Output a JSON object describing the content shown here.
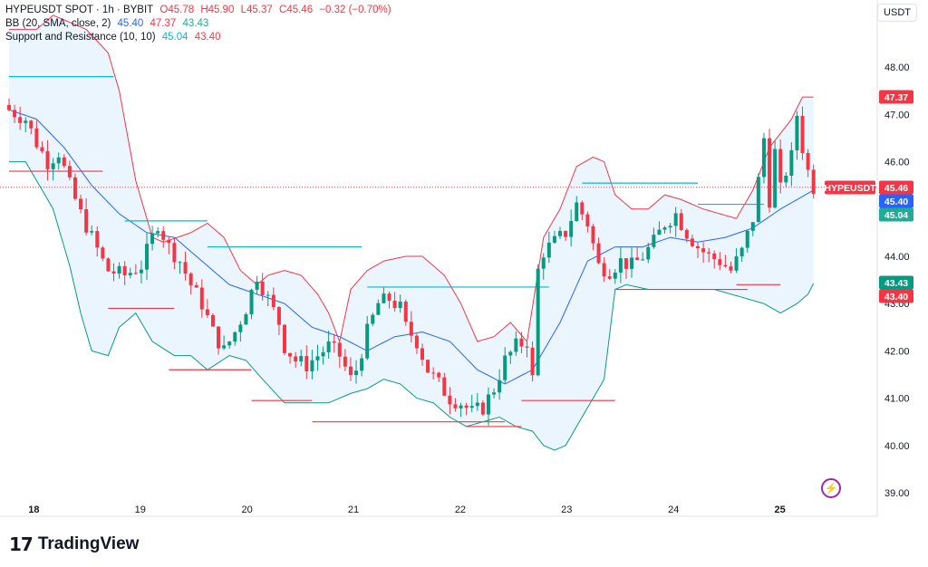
{
  "legend": {
    "symbol": "HYPEUSDT SPOT · 1h · BYBIT",
    "open": "O45.78",
    "high": "H45.90",
    "low": "L45.37",
    "close": "C45.46",
    "change": "−0.32 (−0.70%)",
    "bb_title": "BB (20, SMA, close, 2)",
    "bb_basis": "45.40",
    "bb_upper": "47.37",
    "bb_lower": "43.43",
    "sr_title": "Support and Resistance (10, 10)",
    "sr_resistance": "45.04",
    "sr_support": "43.40"
  },
  "currency": "USDT",
  "logo": {
    "mark": "17",
    "text": "TradingView"
  },
  "colors": {
    "up": "#089981",
    "down": "#f23645",
    "basis": "#2962ff",
    "upper": "#f23645",
    "lower": "#089981",
    "band_fill": "#e3f2fd",
    "resistance": "#00bcd4",
    "support": "#f23645"
  },
  "chart_data": {
    "type": "candlestick",
    "title": "HYPEUSDT SPOT · 1h · BYBIT",
    "x_labels": [
      "18",
      "19",
      "20",
      "21",
      "22",
      "23",
      "24",
      "25"
    ],
    "y_ticks": [
      39.0,
      40.0,
      41.0,
      42.0,
      43.0,
      44.0,
      45.0,
      46.0,
      47.0,
      48.0
    ],
    "ylim": [
      38.8,
      48.6
    ],
    "price_labels": [
      {
        "text": "47.37",
        "color": "#f23645"
      },
      {
        "text": "HYPEUSDT",
        "color": "#f23645"
      },
      {
        "text": "45.46",
        "color": "#f23645"
      },
      {
        "text": "45.40",
        "color": "#2962ff"
      },
      {
        "text": "45.04",
        "color": "#22ab94"
      },
      {
        "text": "43.43",
        "color": "#089981"
      },
      {
        "text": "43.40",
        "color": "#f23645"
      }
    ],
    "last_price": 45.46,
    "close_path": [
      [
        0,
        47.1
      ],
      [
        3,
        46.9
      ],
      [
        5,
        46.4
      ],
      [
        7,
        46.0
      ],
      [
        9,
        46.2
      ],
      [
        11,
        45.5
      ],
      [
        13,
        44.9
      ],
      [
        15,
        44.4
      ],
      [
        17,
        43.9
      ],
      [
        18,
        43.7
      ],
      [
        21,
        43.6
      ],
      [
        24,
        43.8
      ],
      [
        26,
        44.4
      ],
      [
        27,
        44.7
      ],
      [
        29,
        44.2
      ],
      [
        31,
        43.9
      ],
      [
        33,
        43.4
      ],
      [
        35,
        43.0
      ],
      [
        37,
        42.4
      ],
      [
        39,
        42.0
      ],
      [
        41,
        42.4
      ],
      [
        43,
        42.9
      ],
      [
        45,
        43.6
      ],
      [
        47,
        43.1
      ],
      [
        49,
        42.6
      ],
      [
        50,
        42.1
      ],
      [
        52,
        41.8
      ],
      [
        54,
        41.7
      ],
      [
        56,
        41.9
      ],
      [
        58,
        42.1
      ],
      [
        60,
        41.9
      ],
      [
        62,
        41.4
      ],
      [
        63,
        41.6
      ],
      [
        65,
        42.4
      ],
      [
        67,
        43.0
      ],
      [
        69,
        43.1
      ],
      [
        71,
        42.9
      ],
      [
        72,
        42.5
      ],
      [
        74,
        42.2
      ],
      [
        76,
        41.6
      ],
      [
        78,
        41.3
      ],
      [
        80,
        41.0
      ],
      [
        82,
        40.9
      ],
      [
        84,
        40.7
      ],
      [
        86,
        40.8
      ],
      [
        88,
        41.2
      ],
      [
        90,
        41.8
      ],
      [
        92,
        42.1
      ],
      [
        94,
        42.2
      ],
      [
        95,
        41.4
      ],
      [
        96,
        43.7
      ],
      [
        97,
        44.1
      ],
      [
        99,
        44.3
      ],
      [
        101,
        44.5
      ],
      [
        103,
        45.1
      ],
      [
        105,
        44.7
      ],
      [
        107,
        43.8
      ],
      [
        109,
        43.7
      ],
      [
        111,
        43.9
      ],
      [
        113,
        43.8
      ],
      [
        115,
        44.0
      ],
      [
        117,
        44.3
      ],
      [
        119,
        44.7
      ],
      [
        121,
        44.9
      ],
      [
        123,
        44.5
      ],
      [
        125,
        44.2
      ],
      [
        127,
        44.0
      ],
      [
        129,
        43.9
      ],
      [
        131,
        43.7
      ],
      [
        133,
        44.1
      ],
      [
        135,
        44.8
      ],
      [
        136,
        45.6
      ],
      [
        137,
        46.5
      ],
      [
        138,
        45.2
      ],
      [
        139,
        46.2
      ],
      [
        140,
        45.4
      ],
      [
        141,
        45.8
      ],
      [
        142,
        46.1
      ],
      [
        143,
        47.0
      ],
      [
        144,
        46.3
      ],
      [
        145,
        45.8
      ],
      [
        146,
        45.46
      ]
    ],
    "bollinger": {
      "basis": [
        [
          0,
          47.1
        ],
        [
          5,
          46.9
        ],
        [
          10,
          46.3
        ],
        [
          15,
          45.5
        ],
        [
          20,
          44.9
        ],
        [
          25,
          44.5
        ],
        [
          30,
          44.4
        ],
        [
          35,
          43.9
        ],
        [
          40,
          43.4
        ],
        [
          45,
          43.2
        ],
        [
          50,
          43.0
        ],
        [
          55,
          42.5
        ],
        [
          60,
          42.3
        ],
        [
          65,
          42.0
        ],
        [
          70,
          42.3
        ],
        [
          75,
          42.4
        ],
        [
          80,
          42.2
        ],
        [
          85,
          41.6
        ],
        [
          90,
          41.3
        ],
        [
          95,
          41.6
        ],
        [
          100,
          42.6
        ],
        [
          105,
          43.9
        ],
        [
          110,
          44.2
        ],
        [
          115,
          44.2
        ],
        [
          120,
          44.4
        ],
        [
          125,
          44.3
        ],
        [
          130,
          44.4
        ],
        [
          135,
          44.6
        ],
        [
          140,
          45.0
        ],
        [
          146,
          45.4
        ]
      ],
      "upper": [
        [
          0,
          48.8
        ],
        [
          5,
          48.8
        ],
        [
          8,
          49.1
        ],
        [
          10,
          49.0
        ],
        [
          14,
          48.8
        ],
        [
          18,
          48.3
        ],
        [
          20,
          47.5
        ],
        [
          23,
          45.6
        ],
        [
          26,
          44.4
        ],
        [
          28,
          44.3
        ],
        [
          33,
          44.5
        ],
        [
          36,
          44.7
        ],
        [
          39,
          44.4
        ],
        [
          42,
          43.7
        ],
        [
          45,
          43.4
        ],
        [
          47,
          43.6
        ],
        [
          50,
          43.7
        ],
        [
          53,
          43.6
        ],
        [
          56,
          43.2
        ],
        [
          58,
          42.8
        ],
        [
          60,
          42.2
        ],
        [
          62,
          43.3
        ],
        [
          65,
          43.7
        ],
        [
          68,
          43.9
        ],
        [
          72,
          44.0
        ],
        [
          75,
          44.0
        ],
        [
          79,
          43.6
        ],
        [
          82,
          43.0
        ],
        [
          85,
          42.2
        ],
        [
          88,
          42.3
        ],
        [
          91,
          42.6
        ],
        [
          94,
          42.2
        ],
        [
          97,
          44.4
        ],
        [
          100,
          45.0
        ],
        [
          103,
          45.9
        ],
        [
          106,
          46.1
        ],
        [
          108,
          46.0
        ],
        [
          110,
          45.3
        ],
        [
          113,
          45.0
        ],
        [
          116,
          45.0
        ],
        [
          119,
          45.3
        ],
        [
          122,
          45.2
        ],
        [
          126,
          45.0
        ],
        [
          129,
          44.9
        ],
        [
          132,
          44.8
        ],
        [
          135,
          45.4
        ],
        [
          138,
          46.3
        ],
        [
          140,
          46.6
        ],
        [
          142,
          46.9
        ],
        [
          144,
          47.37
        ],
        [
          146,
          47.37
        ]
      ],
      "lower": [
        [
          0,
          46.0
        ],
        [
          3,
          46.0
        ],
        [
          5,
          45.6
        ],
        [
          8,
          45.0
        ],
        [
          11,
          43.8
        ],
        [
          13,
          42.8
        ],
        [
          15,
          42.0
        ],
        [
          18,
          41.9
        ],
        [
          20,
          42.5
        ],
        [
          23,
          42.8
        ],
        [
          26,
          42.2
        ],
        [
          30,
          41.9
        ],
        [
          33,
          41.9
        ],
        [
          36,
          41.6
        ],
        [
          40,
          41.9
        ],
        [
          43,
          41.8
        ],
        [
          46,
          41.4
        ],
        [
          50,
          40.9
        ],
        [
          54,
          40.9
        ],
        [
          58,
          40.9
        ],
        [
          60,
          41.0
        ],
        [
          62,
          41.1
        ],
        [
          65,
          41.2
        ],
        [
          68,
          41.4
        ],
        [
          71,
          41.3
        ],
        [
          74,
          41.0
        ],
        [
          77,
          40.9
        ],
        [
          80,
          40.6
        ],
        [
          83,
          40.4
        ],
        [
          86,
          40.5
        ],
        [
          89,
          40.6
        ],
        [
          92,
          40.4
        ],
        [
          95,
          40.3
        ],
        [
          97,
          40.0
        ],
        [
          99,
          39.9
        ],
        [
          101,
          40.0
        ],
        [
          103,
          40.4
        ],
        [
          106,
          41.0
        ],
        [
          108,
          41.4
        ],
        [
          110,
          43.3
        ],
        [
          112,
          43.4
        ],
        [
          116,
          43.3
        ],
        [
          120,
          43.3
        ],
        [
          124,
          43.3
        ],
        [
          128,
          43.3
        ],
        [
          131,
          43.2
        ],
        [
          134,
          43.1
        ],
        [
          137,
          43.0
        ],
        [
          140,
          42.8
        ],
        [
          143,
          43.0
        ],
        [
          145,
          43.2
        ],
        [
          146,
          43.43
        ]
      ]
    },
    "support_resistance": [
      {
        "kind": "resistance",
        "from": 0,
        "to": 19,
        "value": 47.8
      },
      {
        "kind": "support",
        "from": 0,
        "to": 17,
        "value": 45.8
      },
      {
        "kind": "resistance",
        "from": 21,
        "to": 36,
        "value": 44.75
      },
      {
        "kind": "support",
        "from": 18,
        "to": 30,
        "value": 42.9
      },
      {
        "kind": "resistance",
        "from": 36,
        "to": 64,
        "value": 44.2
      },
      {
        "kind": "support",
        "from": 29,
        "to": 44,
        "value": 41.6
      },
      {
        "kind": "support",
        "from": 44,
        "to": 55,
        "value": 40.95
      },
      {
        "kind": "resistance",
        "from": 65,
        "to": 98,
        "value": 43.35
      },
      {
        "kind": "support",
        "from": 55,
        "to": 90,
        "value": 40.5
      },
      {
        "kind": "support",
        "from": 83,
        "to": 93,
        "value": 40.4
      },
      {
        "kind": "support",
        "from": 93,
        "to": 110,
        "value": 40.95
      },
      {
        "kind": "resistance",
        "from": 104,
        "to": 125,
        "value": 45.55
      },
      {
        "kind": "support",
        "from": 110,
        "to": 134,
        "value": 43.3
      },
      {
        "kind": "resistance",
        "from": 125,
        "to": 137,
        "value": 45.1
      },
      {
        "kind": "support",
        "from": 132,
        "to": 140,
        "value": 43.4
      }
    ]
  }
}
